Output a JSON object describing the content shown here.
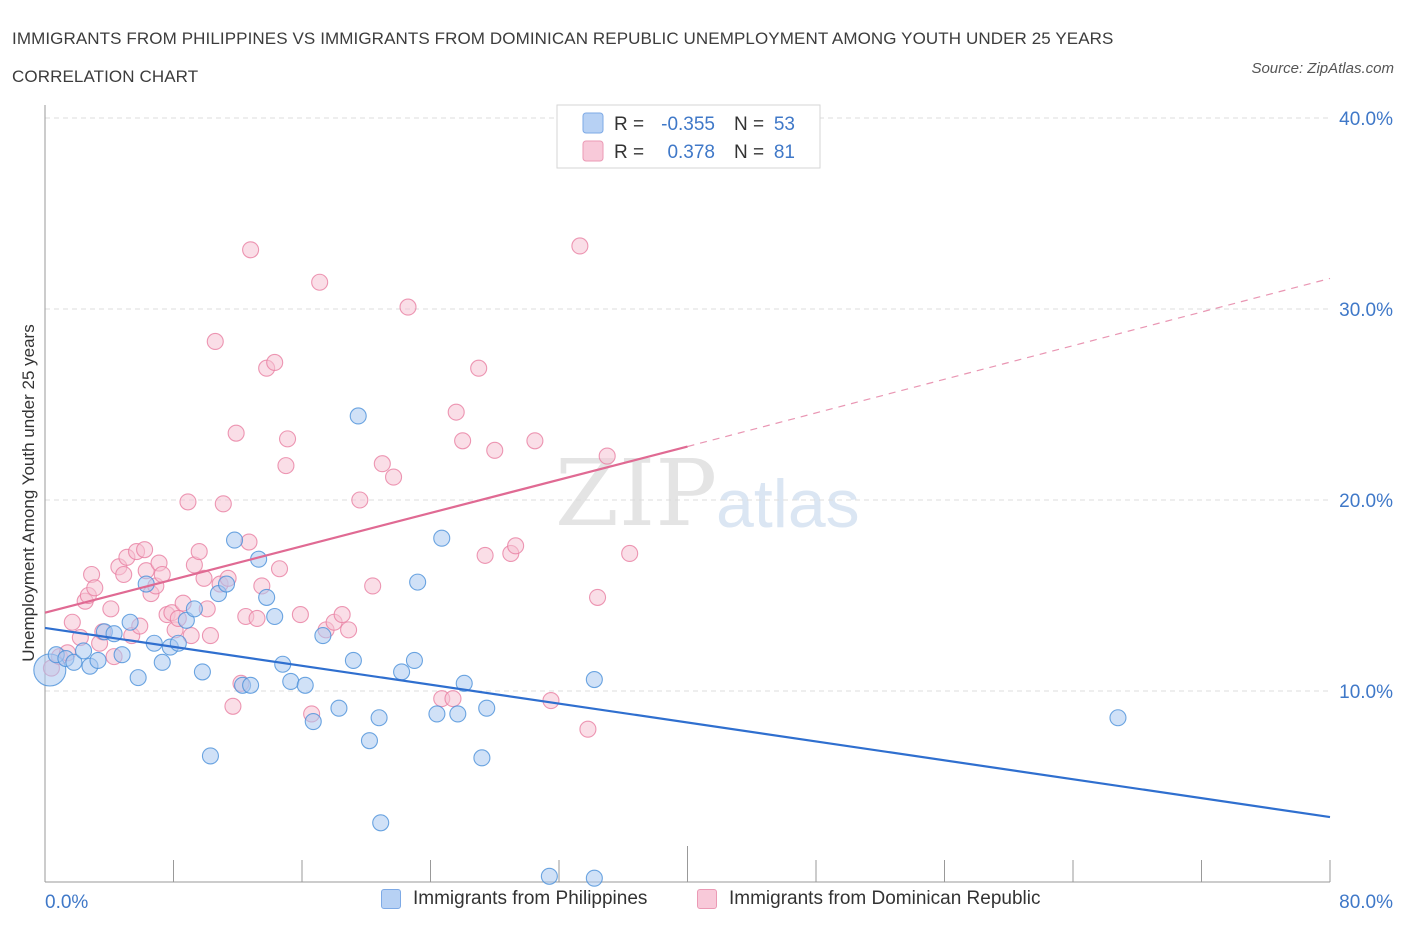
{
  "header": {
    "title": "IMMIGRANTS FROM PHILIPPINES VS IMMIGRANTS FROM DOMINICAN REPUBLIC UNEMPLOYMENT AMONG YOUTH UNDER 25 YEARS CORRELATION CHART",
    "source": "Source: ZipAtlas.com"
  },
  "watermark": {
    "zip": "ZIP",
    "atlas": "atlas"
  },
  "colors": {
    "blue": "#4a90d9",
    "blue_fill": "#a9c8f0",
    "blue_line": "#2f6fcf",
    "pink": "#e87ea1",
    "pink_fill": "#f6c3d4",
    "pink_line": "#e06a93",
    "axis_text": "#3f78c8",
    "grid": "#dddddd"
  },
  "legend_top": {
    "rows": [
      {
        "r_label": "R =",
        "r_value": "-0.355",
        "n_label": "N =",
        "n_value": "53"
      },
      {
        "r_label": "R =",
        "r_value": "0.378",
        "n_label": "N =",
        "n_value": "81"
      }
    ]
  },
  "legend_bottom": {
    "items": [
      {
        "label": "Immigrants from Philippines"
      },
      {
        "label": "Immigrants from Dominican Republic"
      }
    ]
  },
  "chart_data": {
    "type": "scatter",
    "title": "IMMIGRANTS FROM PHILIPPINES VS IMMIGRANTS FROM DOMINICAN REPUBLIC UNEMPLOYMENT AMONG YOUTH UNDER 25 YEARS CORRELATION CHART",
    "xlabel": "",
    "ylabel": "Unemployment Among Youth under 25 years",
    "xlim": [
      0,
      80
    ],
    "ylim": [
      0,
      40
    ],
    "x_tick_labels": [
      "0.0%",
      "80.0%"
    ],
    "y_ticks": [
      10,
      20,
      30,
      40
    ],
    "y_tick_labels": [
      "10.0%",
      "20.0%",
      "30.0%",
      "40.0%"
    ],
    "grid": true,
    "series": [
      {
        "name": "Immigrants from Philippines",
        "R": -0.355,
        "N": 53,
        "trend": {
          "x0": 0,
          "y0": 13.3,
          "x1": 80,
          "y1": 3.4
        },
        "points": [
          [
            0.3,
            11.1
          ],
          [
            0.7,
            11.9
          ],
          [
            1.3,
            11.7
          ],
          [
            1.8,
            11.5
          ],
          [
            2.4,
            12.1
          ],
          [
            2.8,
            11.3
          ],
          [
            3.3,
            11.6
          ],
          [
            3.7,
            13.1
          ],
          [
            4.3,
            13.0
          ],
          [
            4.8,
            11.9
          ],
          [
            5.3,
            13.6
          ],
          [
            5.8,
            10.7
          ],
          [
            6.3,
            15.6
          ],
          [
            6.8,
            12.5
          ],
          [
            7.3,
            11.5
          ],
          [
            7.8,
            12.3
          ],
          [
            8.3,
            12.5
          ],
          [
            8.8,
            13.7
          ],
          [
            9.3,
            14.3
          ],
          [
            9.8,
            11.0
          ],
          [
            10.3,
            6.6
          ],
          [
            10.8,
            15.1
          ],
          [
            11.3,
            15.6
          ],
          [
            11.8,
            17.9
          ],
          [
            12.3,
            10.3
          ],
          [
            12.8,
            10.3
          ],
          [
            13.3,
            16.9
          ],
          [
            13.8,
            14.9
          ],
          [
            14.3,
            13.9
          ],
          [
            14.8,
            11.4
          ],
          [
            15.3,
            10.5
          ],
          [
            16.2,
            10.3
          ],
          [
            16.7,
            8.4
          ],
          [
            17.3,
            12.9
          ],
          [
            18.3,
            9.1
          ],
          [
            19.2,
            11.6
          ],
          [
            19.5,
            24.4
          ],
          [
            20.2,
            7.4
          ],
          [
            20.8,
            8.6
          ],
          [
            20.9,
            3.1
          ],
          [
            22.2,
            11.0
          ],
          [
            23.0,
            11.6
          ],
          [
            23.2,
            15.7
          ],
          [
            24.4,
            8.8
          ],
          [
            24.7,
            18.0
          ],
          [
            25.7,
            8.8
          ],
          [
            26.1,
            10.4
          ],
          [
            27.2,
            6.5
          ],
          [
            27.5,
            9.1
          ],
          [
            31.4,
            0.3
          ],
          [
            34.2,
            10.6
          ],
          [
            34.2,
            0.2
          ],
          [
            66.8,
            8.6
          ]
        ]
      },
      {
        "name": "Immigrants from Dominican Republic",
        "R": 0.378,
        "N": 81,
        "trend": {
          "x0": 0,
          "y0": 14.1,
          "x1": 40,
          "y1": 22.8,
          "dashed_to_x": 80,
          "dashed_to_y": 31.6
        },
        "points": [
          [
            0.4,
            11.2
          ],
          [
            0.9,
            11.8
          ],
          [
            1.4,
            12.0
          ],
          [
            1.7,
            13.6
          ],
          [
            2.2,
            12.8
          ],
          [
            2.5,
            14.7
          ],
          [
            2.7,
            15.0
          ],
          [
            2.9,
            16.1
          ],
          [
            3.1,
            15.4
          ],
          [
            3.4,
            12.5
          ],
          [
            3.6,
            13.1
          ],
          [
            4.1,
            14.3
          ],
          [
            4.3,
            11.8
          ],
          [
            4.6,
            16.5
          ],
          [
            4.9,
            16.1
          ],
          [
            5.1,
            17.0
          ],
          [
            5.4,
            12.9
          ],
          [
            5.7,
            17.3
          ],
          [
            5.9,
            13.4
          ],
          [
            6.2,
            17.4
          ],
          [
            6.3,
            16.3
          ],
          [
            6.6,
            15.1
          ],
          [
            6.9,
            15.5
          ],
          [
            7.1,
            16.7
          ],
          [
            7.3,
            16.1
          ],
          [
            7.6,
            14.0
          ],
          [
            7.9,
            14.1
          ],
          [
            8.1,
            13.2
          ],
          [
            8.3,
            13.8
          ],
          [
            8.6,
            14.6
          ],
          [
            8.9,
            19.9
          ],
          [
            9.1,
            12.9
          ],
          [
            9.3,
            16.6
          ],
          [
            9.6,
            17.3
          ],
          [
            9.9,
            15.9
          ],
          [
            10.1,
            14.3
          ],
          [
            10.3,
            12.9
          ],
          [
            10.6,
            28.3
          ],
          [
            10.9,
            15.6
          ],
          [
            11.1,
            19.8
          ],
          [
            11.4,
            15.9
          ],
          [
            11.7,
            9.2
          ],
          [
            11.9,
            23.5
          ],
          [
            12.2,
            10.4
          ],
          [
            12.5,
            13.9
          ],
          [
            12.7,
            17.8
          ],
          [
            12.8,
            33.1
          ],
          [
            13.2,
            13.8
          ],
          [
            13.5,
            15.5
          ],
          [
            13.8,
            26.9
          ],
          [
            14.3,
            27.2
          ],
          [
            14.6,
            16.4
          ],
          [
            15.0,
            21.8
          ],
          [
            15.1,
            23.2
          ],
          [
            15.9,
            14.0
          ],
          [
            16.6,
            8.8
          ],
          [
            17.1,
            31.4
          ],
          [
            17.5,
            13.2
          ],
          [
            18.0,
            13.6
          ],
          [
            18.5,
            14.0
          ],
          [
            18.9,
            13.2
          ],
          [
            19.6,
            20.0
          ],
          [
            20.4,
            15.5
          ],
          [
            21.0,
            21.9
          ],
          [
            21.7,
            21.2
          ],
          [
            22.6,
            30.1
          ],
          [
            24.7,
            9.6
          ],
          [
            25.4,
            9.6
          ],
          [
            25.6,
            24.6
          ],
          [
            26.0,
            23.1
          ],
          [
            27.0,
            26.9
          ],
          [
            27.4,
            17.1
          ],
          [
            28.0,
            22.6
          ],
          [
            29.0,
            17.2
          ],
          [
            29.3,
            17.6
          ],
          [
            30.5,
            23.1
          ],
          [
            31.5,
            9.5
          ],
          [
            33.3,
            33.3
          ],
          [
            33.8,
            8.0
          ],
          [
            34.4,
            14.9
          ],
          [
            35.0,
            22.3
          ],
          [
            36.4,
            17.2
          ]
        ]
      }
    ]
  }
}
